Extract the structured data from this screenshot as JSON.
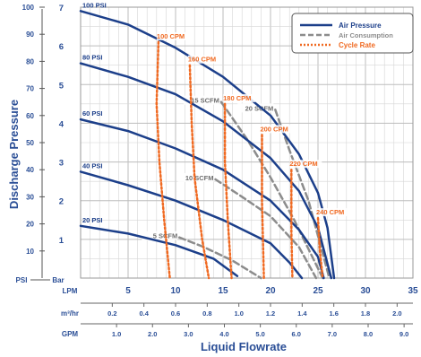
{
  "chart_data": {
    "type": "line",
    "xlabel": "Liquid Flowrate",
    "ylabel": "Discharge Pressure",
    "x_unit_lpm": "LPM",
    "x_unit_m3": "m³/hr",
    "x_unit_gpm": "GPM",
    "y_unit_psi": "PSI",
    "y_unit_bar": "Bar",
    "xlim": [
      0,
      35
    ],
    "ylim_bar": [
      0,
      7
    ],
    "ylim_psi": [
      0,
      100
    ],
    "grid": true,
    "legend_position": "top-right",
    "x_ticks_lpm": [
      "5",
      "10",
      "15",
      "20",
      "25",
      "30",
      "35"
    ],
    "x_ticks_m3": [
      "0.2",
      "0.4",
      "0.6",
      "0.8",
      "1.0",
      "1.2",
      "1.4",
      "1.6",
      "1.8",
      "2.0"
    ],
    "x_ticks_gpm": [
      "1.0",
      "2.0",
      "3.0",
      "4.0",
      "5.0",
      "6.0",
      "7.0",
      "8.0",
      "9.0"
    ],
    "y_ticks_bar": [
      "1",
      "2",
      "3",
      "4",
      "5",
      "6",
      "7"
    ],
    "y_ticks_psi": [
      "10",
      "20",
      "30",
      "40",
      "50",
      "60",
      "70",
      "80",
      "90",
      "100"
    ],
    "legend": [
      "Air Pressure",
      "Air Consumption",
      "Cycle Rate"
    ],
    "colors": {
      "air_pressure": "#1c3f8a",
      "air_consumption": "#8c8c8c",
      "cycle_rate": "#f06a22",
      "axis_text": "#2a4e96",
      "grid": "#d6d6d6"
    },
    "air_pressure": [
      {
        "label": "100 PSI",
        "points": [
          [
            0,
            6.9
          ],
          [
            5,
            6.55
          ],
          [
            10,
            5.95
          ],
          [
            15,
            5.2
          ],
          [
            20,
            4.2
          ],
          [
            23,
            3.2
          ],
          [
            25,
            2.2
          ],
          [
            26,
            1.3
          ],
          [
            26.7,
            0
          ]
        ]
      },
      {
        "label": "80 PSI",
        "points": [
          [
            0,
            5.55
          ],
          [
            5,
            5.2
          ],
          [
            10,
            4.75
          ],
          [
            15,
            4.05
          ],
          [
            20,
            3.1
          ],
          [
            23,
            2.25
          ],
          [
            25,
            1.3
          ],
          [
            26.4,
            0
          ]
        ]
      },
      {
        "label": "60 PSI",
        "points": [
          [
            0,
            4.1
          ],
          [
            5,
            3.8
          ],
          [
            10,
            3.35
          ],
          [
            15,
            2.8
          ],
          [
            20,
            2.0
          ],
          [
            23,
            1.25
          ],
          [
            25,
            0.55
          ],
          [
            25.6,
            0
          ]
        ]
      },
      {
        "label": "40 PSI",
        "points": [
          [
            0,
            2.75
          ],
          [
            5,
            2.4
          ],
          [
            10,
            2.0
          ],
          [
            15,
            1.5
          ],
          [
            20,
            0.9
          ],
          [
            22,
            0.4
          ],
          [
            23.3,
            0
          ]
        ]
      },
      {
        "label": "20 PSI",
        "points": [
          [
            0,
            1.35
          ],
          [
            5,
            1.15
          ],
          [
            10,
            0.85
          ],
          [
            14,
            0.5
          ],
          [
            16.5,
            0.05
          ]
        ]
      }
    ],
    "air_consumption": [
      {
        "label": "5 SCFM",
        "points": [
          [
            10.4,
            1.05
          ],
          [
            13,
            0.8
          ],
          [
            16,
            0.45
          ],
          [
            19,
            0
          ]
        ]
      },
      {
        "label": "10 SCFM",
        "points": [
          [
            14.2,
            2.55
          ],
          [
            17,
            2.1
          ],
          [
            20,
            1.6
          ],
          [
            23,
            0.8
          ],
          [
            24.8,
            0
          ]
        ]
      },
      {
        "label": "15 SCFM",
        "points": [
          [
            14.8,
            4.55
          ],
          [
            17.5,
            3.6
          ],
          [
            20,
            2.6
          ],
          [
            22.5,
            1.5
          ],
          [
            25.5,
            0
          ]
        ]
      },
      {
        "label": "20 SCFM",
        "points": [
          [
            20.5,
            4.35
          ],
          [
            22,
            3.3
          ],
          [
            24,
            2.0
          ],
          [
            26.2,
            0
          ]
        ]
      }
    ],
    "cycle_rate": [
      {
        "label": "100 CPM",
        "points": [
          [
            8.2,
            6.1
          ],
          [
            8.0,
            4.5
          ],
          [
            8.3,
            3.0
          ],
          [
            8.8,
            1.5
          ],
          [
            9.4,
            0
          ]
        ]
      },
      {
        "label": "160 CPM",
        "points": [
          [
            11.5,
            5.5
          ],
          [
            11.7,
            4.0
          ],
          [
            12.0,
            2.6
          ],
          [
            12.8,
            1.0
          ],
          [
            13.5,
            0
          ]
        ]
      },
      {
        "label": "180 CPM",
        "points": [
          [
            15.2,
            4.5
          ],
          [
            15.2,
            3.0
          ],
          [
            15.5,
            1.5
          ],
          [
            15.9,
            0
          ]
        ]
      },
      {
        "label": "200 CPM",
        "points": [
          [
            19.1,
            3.7
          ],
          [
            19.1,
            2.0
          ],
          [
            19.3,
            0
          ]
        ]
      },
      {
        "label": "220 CPM",
        "points": [
          [
            22.2,
            2.8
          ],
          [
            22.2,
            1.2
          ],
          [
            22.3,
            0
          ]
        ]
      },
      {
        "label": "240 CPM",
        "points": [
          [
            25.0,
            1.55
          ],
          [
            25.2,
            0.7
          ],
          [
            25.5,
            0
          ]
        ]
      }
    ]
  }
}
